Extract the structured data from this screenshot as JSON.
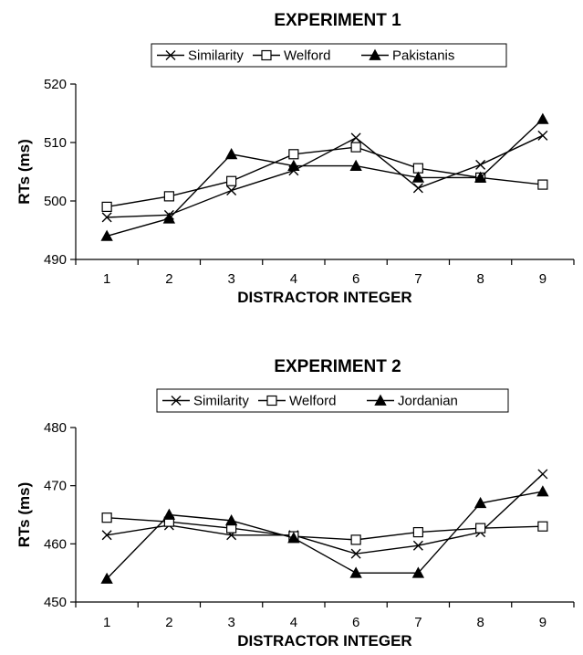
{
  "chart_data": [
    {
      "type": "line",
      "title": "EXPERIMENT 1",
      "xlabel": "DISTRACTOR INTEGER",
      "ylabel": "RTs (ms)",
      "categories": [
        "1",
        "2",
        "3",
        "4",
        "6",
        "7",
        "8",
        "9"
      ],
      "ylim": [
        490,
        520
      ],
      "yticks": [
        490,
        500,
        510,
        520
      ],
      "grid": false,
      "legend_position": "top",
      "series": [
        {
          "name": "Similarity",
          "marker": "x",
          "values": [
            497.2,
            497.6,
            501.8,
            505.2,
            510.8,
            502.2,
            506.2,
            511.2
          ]
        },
        {
          "name": "Welford",
          "marker": "square",
          "values": [
            499.0,
            500.8,
            503.4,
            508.0,
            509.2,
            505.6,
            504.0,
            502.8
          ]
        },
        {
          "name": "Pakistanis",
          "marker": "triangle",
          "values": [
            494.0,
            497.0,
            508.0,
            506.0,
            506.0,
            504.0,
            504.0,
            514.0
          ]
        }
      ]
    },
    {
      "type": "line",
      "title": "EXPERIMENT 2",
      "xlabel": "DISTRACTOR INTEGER",
      "ylabel": "RTs (ms)",
      "categories": [
        "1",
        "2",
        "3",
        "4",
        "6",
        "7",
        "8",
        "9"
      ],
      "ylim": [
        450,
        480
      ],
      "yticks": [
        450,
        460,
        470,
        480
      ],
      "grid": false,
      "legend_position": "top",
      "series": [
        {
          "name": "Similarity",
          "marker": "x",
          "values": [
            461.5,
            463.2,
            461.5,
            461.5,
            458.3,
            459.7,
            462.0,
            472.0
          ]
        },
        {
          "name": "Welford",
          "marker": "square",
          "values": [
            464.5,
            463.8,
            462.7,
            461.3,
            460.7,
            462.0,
            462.7,
            463.0
          ]
        },
        {
          "name": "Jordanian",
          "marker": "triangle",
          "values": [
            454.0,
            465.0,
            464.0,
            461.0,
            455.0,
            455.0,
            467.0,
            469.0
          ]
        }
      ]
    }
  ]
}
